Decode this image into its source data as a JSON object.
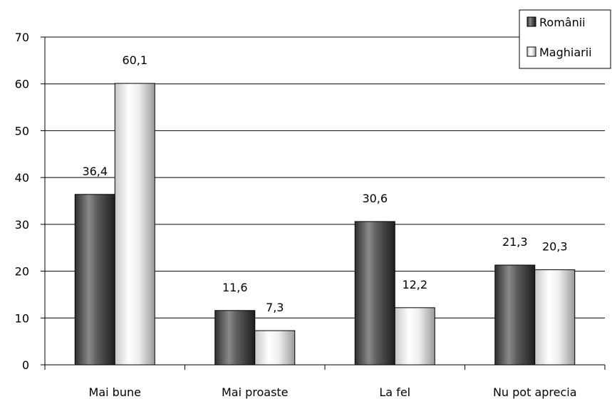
{
  "chart_data": {
    "type": "bar",
    "categories": [
      "Mai bune",
      "Mai proaste",
      "La fel",
      "Nu pot aprecia"
    ],
    "series": [
      {
        "name": "Românii",
        "values": [
          36.4,
          11.6,
          30.6,
          21.3
        ],
        "labels": [
          "36,4",
          "11,6",
          "30,6",
          "21,3"
        ],
        "color": "#5a5a5a"
      },
      {
        "name": "Maghiarii",
        "values": [
          60.1,
          7.3,
          12.2,
          20.3
        ],
        "labels": [
          "60,1",
          "7,3",
          "12,2",
          "20,3"
        ],
        "color": "#e8e8e8"
      }
    ],
    "yticks": [
      "0",
      "10",
      "20",
      "30",
      "40",
      "50",
      "60",
      "70"
    ],
    "ylim": [
      0,
      70
    ],
    "grid": true,
    "legend_position": "top-right",
    "title": "",
    "xlabel": "",
    "ylabel": ""
  }
}
